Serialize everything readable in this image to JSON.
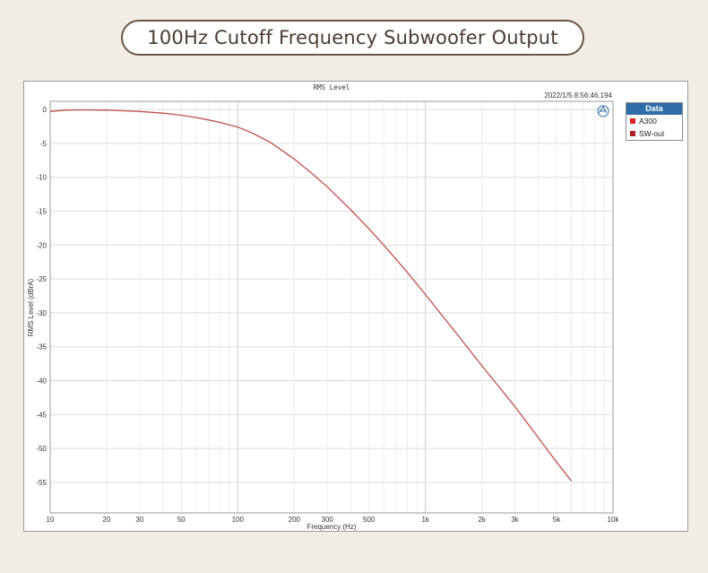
{
  "header": {
    "title": "100Hz Cutoff Frequency Subwoofer Output"
  },
  "chart_data": {
    "type": "line",
    "title": "RMS Level",
    "timestamp": "2022/1/5 8:56:46.194",
    "xlabel": "Frequency (Hz)",
    "ylabel": "RMS Level (dBrA)",
    "xscale": "log",
    "xlim": [
      10,
      10000
    ],
    "ylim": [
      -59.5,
      1.2
    ],
    "grid": true,
    "x_ticks": [
      10,
      20,
      30,
      50,
      100,
      200,
      300,
      500,
      1000,
      2000,
      3000,
      5000,
      10000
    ],
    "x_tick_labels": [
      "10",
      "20",
      "30",
      "50",
      "100",
      "200",
      "300",
      "500",
      "1k",
      "2k",
      "3k",
      "5k",
      "10k"
    ],
    "y_ticks": [
      0,
      -5,
      -10,
      -15,
      -20,
      -25,
      -30,
      -35,
      -40,
      -45,
      -50,
      -55
    ],
    "y_tick_labels": [
      "0",
      "-5",
      "-10",
      "-15",
      "-20",
      "-25",
      "-30",
      "-35",
      "-40",
      "-45",
      "-50",
      "-55"
    ],
    "legend": {
      "title": "Data",
      "position": "right",
      "entries": [
        {
          "name": "A300",
          "color": "#e02020"
        },
        {
          "name": "SW-out",
          "color": "#b02020"
        }
      ]
    },
    "line_color": "#c0504d",
    "series": [
      {
        "x": [
          10,
          12,
          15,
          20,
          25,
          30,
          40,
          50,
          60,
          70,
          80,
          100,
          120,
          150,
          200,
          250,
          300,
          400,
          500,
          600,
          800,
          1000,
          1500,
          2000,
          3000,
          4000,
          5000,
          6000
        ],
        "values": [
          -0.3,
          -0.1,
          -0.05,
          -0.1,
          -0.2,
          -0.3,
          -0.55,
          -0.85,
          -1.2,
          -1.55,
          -1.9,
          -2.6,
          -3.5,
          -4.9,
          -7.3,
          -9.5,
          -11.4,
          -14.8,
          -17.6,
          -20.0,
          -24.0,
          -27.3,
          -33.4,
          -37.8,
          -43.8,
          -48.4,
          -52.0,
          -54.8
        ]
      }
    ]
  }
}
